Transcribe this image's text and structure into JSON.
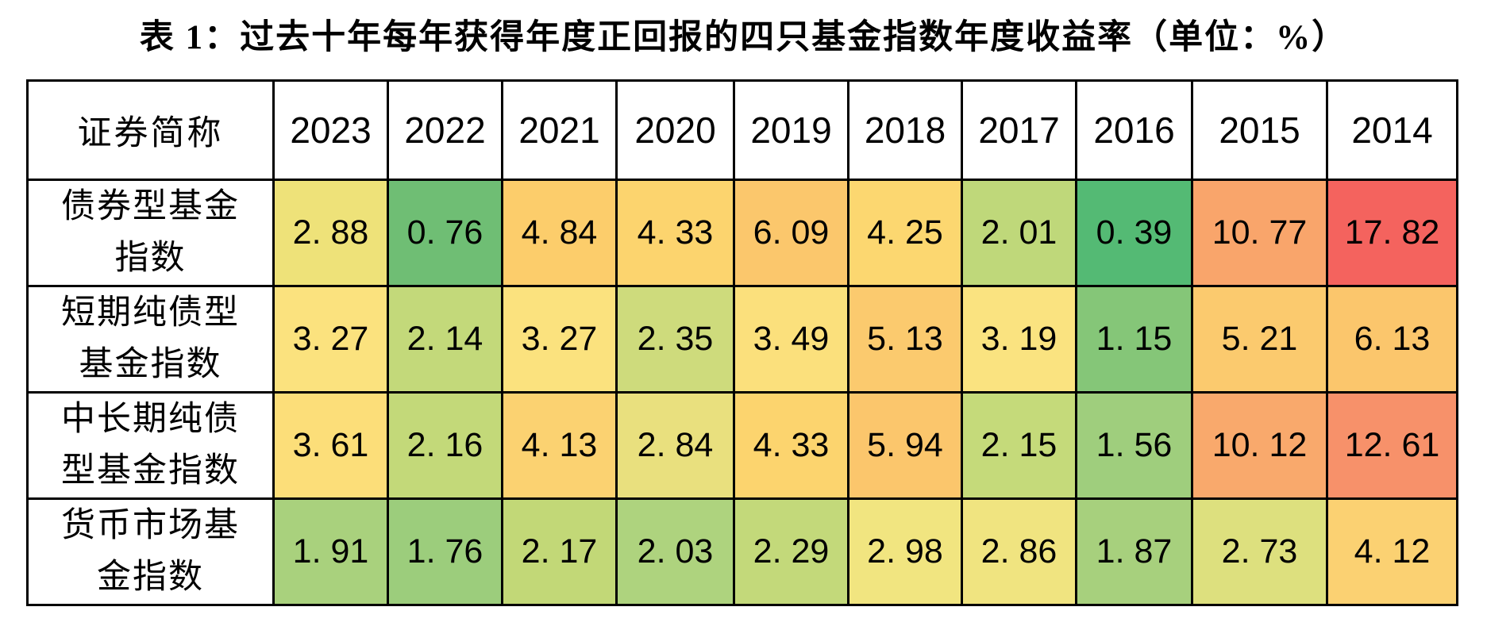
{
  "title": "表 1：过去十年每年获得年度正回报的四只基金指数年度收益率（单位：%）",
  "table": {
    "corner_header": "证券简称",
    "years": [
      "2023",
      "2022",
      "2021",
      "2020",
      "2019",
      "2018",
      "2017",
      "2016",
      "2015",
      "2014"
    ],
    "rows": [
      {
        "label": "债券型基金指数",
        "label_lines": [
          "债券型基金",
          "指数"
        ],
        "values": [
          "2. 88",
          "0. 76",
          "4. 84",
          "4. 33",
          "6. 09",
          "4. 25",
          "2. 01",
          "0. 39",
          "10. 77",
          "17. 82"
        ],
        "colors": [
          "#EEE279",
          "#6FBE74",
          "#FCCD6B",
          "#FCD46E",
          "#FBC76C",
          "#FCD770",
          "#BFD87A",
          "#54BA74",
          "#F9A56B",
          "#F4635E"
        ]
      },
      {
        "label": "短期纯债型基金指数",
        "label_lines": [
          "短期纯债型",
          "基金指数"
        ],
        "values": [
          "3. 27",
          "2. 14",
          "3. 27",
          "2. 35",
          "3. 49",
          "5. 13",
          "3. 19",
          "1. 15",
          "5. 21",
          "6. 13"
        ],
        "colors": [
          "#FBE27E",
          "#C3D97A",
          "#FBE27E",
          "#CEDB7C",
          "#FBE07C",
          "#FBCA6E",
          "#FAE380",
          "#85C678",
          "#FBCA6E",
          "#FBC66C"
        ]
      },
      {
        "label": "中长期纯债型基金指数",
        "label_lines": [
          "中长期纯债",
          "型基金指数"
        ],
        "values": [
          "3. 61",
          "2. 16",
          "4. 13",
          "2. 84",
          "4. 33",
          "5. 94",
          "2. 15",
          "1. 56",
          "10. 12",
          "12. 61"
        ],
        "colors": [
          "#FCDE79",
          "#C3D979",
          "#FBD271",
          "#E9E07E",
          "#FCD46E",
          "#FBC66C",
          "#C5DA7A",
          "#9FCE7D",
          "#F9A96C",
          "#F7916A"
        ]
      },
      {
        "label": "货币市场基金指数",
        "label_lines": [
          "货币市场基",
          "金指数"
        ],
        "values": [
          "1. 91",
          "1. 76",
          "2. 17",
          "2. 03",
          "2. 29",
          "2. 98",
          "2. 86",
          "1. 87",
          "2. 73",
          "4. 12"
        ],
        "colors": [
          "#A9D17D",
          "#9CCD7C",
          "#C2D877",
          "#AED37E",
          "#C3D97A",
          "#F1E580",
          "#F0E480",
          "#A7D07D",
          "#DDE07E",
          "#FBD172"
        ]
      }
    ]
  },
  "chart_data": {
    "type": "table",
    "title": "表 1：过去十年每年获得年度正回报的四只基金指数年度收益率",
    "unit": "%",
    "columns": [
      "2023",
      "2022",
      "2021",
      "2020",
      "2019",
      "2018",
      "2017",
      "2016",
      "2015",
      "2014"
    ],
    "row_header": "证券简称",
    "rows": [
      {
        "name": "债券型基金指数",
        "values": [
          2.88,
          0.76,
          4.84,
          4.33,
          6.09,
          4.25,
          2.01,
          0.39,
          10.77,
          17.82
        ]
      },
      {
        "name": "短期纯债型基金指数",
        "values": [
          3.27,
          2.14,
          3.27,
          2.35,
          3.49,
          5.13,
          3.19,
          1.15,
          5.21,
          6.13
        ]
      },
      {
        "name": "中长期纯债型基金指数",
        "values": [
          3.61,
          2.16,
          4.13,
          2.84,
          4.33,
          5.94,
          2.15,
          1.56,
          10.12,
          12.61
        ]
      },
      {
        "name": "货币市场基金指数",
        "values": [
          1.91,
          1.76,
          2.17,
          2.03,
          2.29,
          2.98,
          2.86,
          1.87,
          2.73,
          4.12
        ]
      }
    ],
    "heatmap_scale": {
      "min_color": "#63BE7B",
      "mid_color": "#FFEB84",
      "max_color": "#F8696B",
      "min_value": 0.39,
      "max_value": 17.82
    }
  }
}
